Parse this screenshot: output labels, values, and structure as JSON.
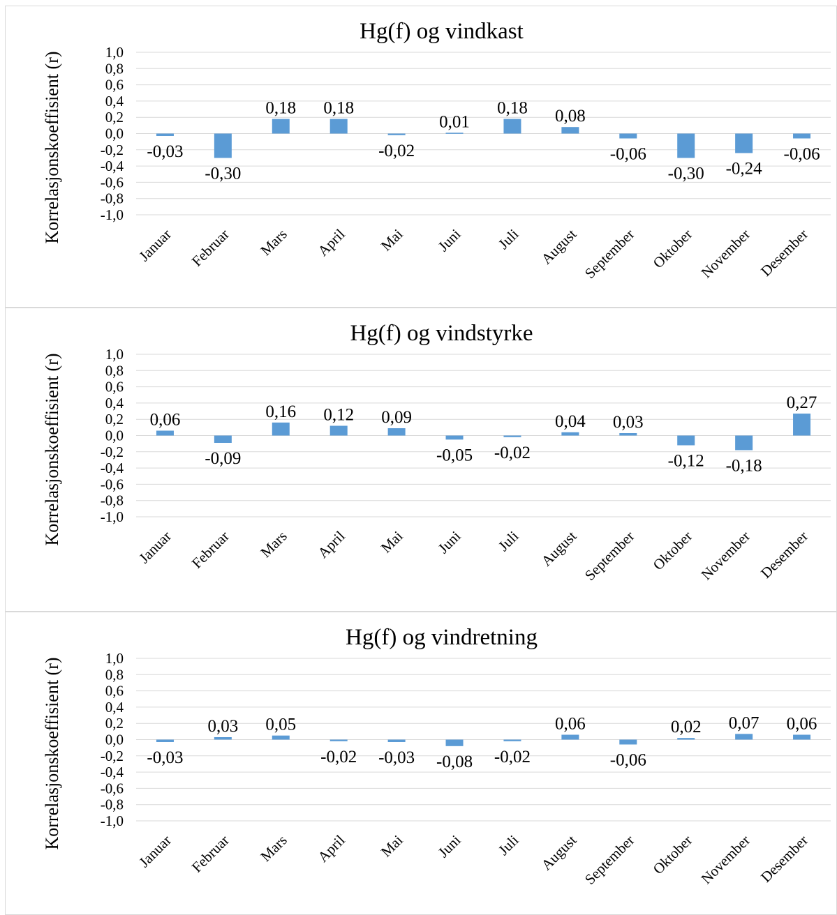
{
  "chart_data": [
    {
      "type": "bar",
      "title": "Hg(f) og vindkast",
      "ylabel": "Korrelasjonskoeffisient (r)",
      "xlabel": "",
      "ylim": [
        -1.0,
        1.0
      ],
      "yticks": [
        "1,0",
        "0,8",
        "0,6",
        "0,4",
        "0,2",
        "0,0",
        "-0,2",
        "-0,4",
        "-0,6",
        "-0,8",
        "-1,0"
      ],
      "categories": [
        "Januar",
        "Februar",
        "Mars",
        "April",
        "Mai",
        "Juni",
        "Juli",
        "August",
        "September",
        "Oktober",
        "November",
        "Desember"
      ],
      "values": [
        -0.03,
        -0.3,
        0.18,
        0.18,
        -0.02,
        0.01,
        0.18,
        0.08,
        -0.06,
        -0.3,
        -0.24,
        -0.06
      ],
      "data_labels": [
        "-0,03",
        "-0,30",
        "0,18",
        "0,18",
        "-0,02",
        "0,01",
        "0,18",
        "0,08",
        "-0,06",
        "-0,30",
        "-0,24",
        "-0,06"
      ],
      "grid": true,
      "bar_color": "#5b9bd5"
    },
    {
      "type": "bar",
      "title": "Hg(f) og vindstyrke",
      "ylabel": "Korrelasjonskoeffisient (r)",
      "xlabel": "",
      "ylim": [
        -1.0,
        1.0
      ],
      "yticks": [
        "1,0",
        "0,8",
        "0,6",
        "0,4",
        "0,2",
        "0,0",
        "-0,2",
        "-0,4",
        "-0,6",
        "-0,8",
        "-1,0"
      ],
      "categories": [
        "Januar",
        "Februar",
        "Mars",
        "April",
        "Mai",
        "Juni",
        "Juli",
        "August",
        "September",
        "Oktober",
        "November",
        "Desember"
      ],
      "values": [
        0.06,
        -0.09,
        0.16,
        0.12,
        0.09,
        -0.05,
        -0.02,
        0.04,
        0.03,
        -0.12,
        -0.18,
        0.27
      ],
      "data_labels": [
        "0,06",
        "-0,09",
        "0,16",
        "0,12",
        "0,09",
        "-0,05",
        "-0,02",
        "0,04",
        "0,03",
        "-0,12",
        "-0,18",
        "0,27"
      ],
      "grid": true,
      "bar_color": "#5b9bd5"
    },
    {
      "type": "bar",
      "title": "Hg(f) og vindretning",
      "ylabel": "Korrelasjonskoeffisient (r)",
      "xlabel": "",
      "ylim": [
        -1.0,
        1.0
      ],
      "yticks": [
        "1,0",
        "0,8",
        "0,6",
        "0,4",
        "0,2",
        "0,0",
        "-0,2",
        "-0,4",
        "-0,6",
        "-0,8",
        "-1,0"
      ],
      "categories": [
        "Januar",
        "Februar",
        "Mars",
        "April",
        "Mai",
        "Juni",
        "Juli",
        "August",
        "September",
        "Oktober",
        "November",
        "Desember"
      ],
      "values": [
        -0.03,
        0.03,
        0.05,
        -0.02,
        -0.03,
        -0.08,
        -0.02,
        0.06,
        -0.06,
        0.02,
        0.07,
        0.06
      ],
      "data_labels": [
        "-0,03",
        "0,03",
        "0,05",
        "-0,02",
        "-0,03",
        "-0,08",
        "-0,02",
        "0,06",
        "-0,06",
        "0,02",
        "0,07",
        "0,06"
      ],
      "grid": true,
      "bar_color": "#5b9bd5"
    }
  ]
}
